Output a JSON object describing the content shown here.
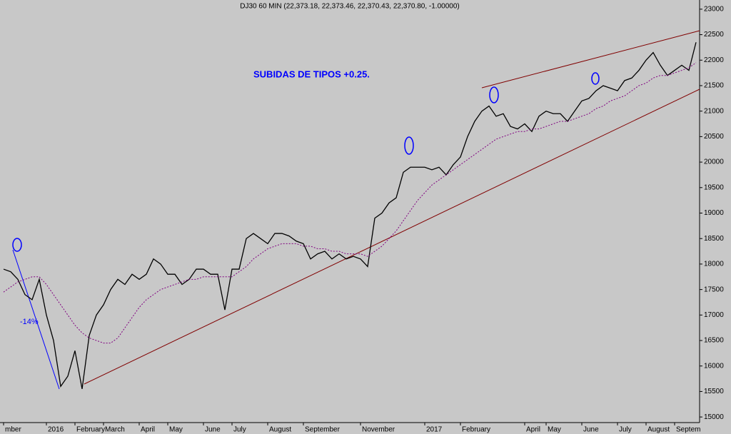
{
  "chart_data": {
    "type": "line",
    "title": "DJ30 60 MIN (22,373.18, 22,373.46, 22,370.43, 22,370.80, -1.00000)",
    "annotations": [
      "SUBIDAS DE TIPOS +0.25.",
      "-14%"
    ],
    "categories": [
      "mber",
      null,
      null,
      null,
      null,
      null,
      "2016",
      null,
      null,
      null,
      "February",
      null,
      null,
      null,
      "March",
      null,
      null,
      null,
      null,
      "April",
      null,
      null,
      null,
      "May",
      null,
      null,
      null,
      null,
      "June",
      null,
      null,
      null,
      "July",
      null,
      null,
      null,
      null,
      "August",
      null,
      null,
      null,
      null,
      "September",
      null,
      null,
      null,
      null,
      null,
      null,
      null,
      "November",
      null,
      null,
      null,
      null,
      null,
      null,
      null,
      null,
      "2017",
      null,
      null,
      null,
      null,
      "February",
      null,
      null,
      null,
      null,
      null,
      null,
      null,
      null,
      "April",
      null,
      null,
      "May",
      null,
      null,
      null,
      null,
      "June",
      null,
      null,
      null,
      null,
      "July",
      null,
      null,
      null,
      "August",
      null,
      null,
      null,
      "Septem",
      null,
      null,
      null
    ],
    "series": [
      {
        "color": "#000000",
        "values": [
          17900,
          17850,
          17700,
          17400,
          17300,
          17700,
          17000,
          16500,
          15600,
          15800,
          16300,
          15550,
          16600,
          17000,
          17200,
          17500,
          17700,
          17600,
          17800,
          17700,
          17800,
          18100,
          18000,
          17800,
          17800,
          17600,
          17700,
          17900,
          17900,
          17800,
          17800,
          17100,
          17900,
          17900,
          18500,
          18600,
          18500,
          18400,
          18600,
          18600,
          18550,
          18450,
          18400,
          18100,
          18200,
          18250,
          18100,
          18200,
          18100,
          18150,
          18100,
          17950,
          18900,
          19000,
          19200,
          19300,
          19800,
          19900,
          19900,
          19900,
          19850,
          19900,
          19750,
          19950,
          20100,
          20500,
          20800,
          21000,
          21100,
          20900,
          20950,
          20700,
          20650,
          20750,
          20600,
          20900,
          21000,
          20950,
          20950,
          20800,
          21000,
          21200,
          21250,
          21400,
          21500,
          21450,
          21400,
          21600,
          21650,
          21800,
          22000,
          22150,
          21900,
          21700,
          21800,
          21900,
          21800,
          22350
        ]
      },
      {
        "color": "#800080",
        "values": [
          17450,
          17550,
          17650,
          17700,
          17750,
          17750,
          17600,
          17400,
          17200,
          17000,
          16800,
          16650,
          16550,
          16500,
          16450,
          16450,
          16550,
          16750,
          16950,
          17150,
          17300,
          17400,
          17500,
          17550,
          17600,
          17650,
          17700,
          17700,
          17750,
          17750,
          17750,
          17750,
          17750,
          17850,
          17950,
          18100,
          18200,
          18300,
          18350,
          18400,
          18400,
          18400,
          18350,
          18350,
          18300,
          18300,
          18250,
          18250,
          18200,
          18200,
          18200,
          18150,
          18250,
          18350,
          18500,
          18650,
          18850,
          19050,
          19250,
          19400,
          19550,
          19650,
          19750,
          19850,
          19950,
          20050,
          20150,
          20250,
          20350,
          20450,
          20500,
          20550,
          20600,
          20600,
          20650,
          20650,
          20700,
          20750,
          20800,
          20800,
          20850,
          20900,
          20950,
          21050,
          21100,
          21200,
          21250,
          21300,
          21400,
          21500,
          21550,
          21650,
          21700,
          21700,
          21750,
          21800,
          21850,
          21950
        ]
      }
    ],
    "ylim": [
      14890,
      23180
    ],
    "yticks": [
      15000,
      15500,
      16000,
      16500,
      17000,
      17500,
      18000,
      18500,
      19000,
      19500,
      20000,
      20500,
      21000,
      21500,
      22000,
      22500,
      23000
    ]
  }
}
